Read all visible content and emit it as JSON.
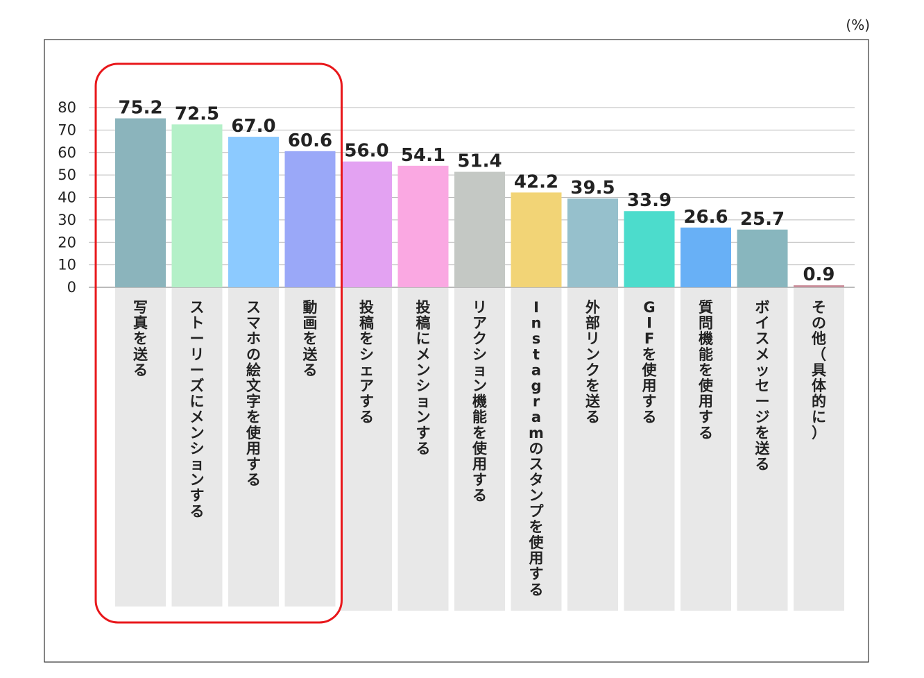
{
  "unit_label": "(%)",
  "chart_data": {
    "type": "bar",
    "title": "",
    "xlabel": "",
    "ylabel": "",
    "ylim": [
      0,
      80
    ],
    "yticks": [
      0,
      10,
      20,
      30,
      40,
      50,
      60,
      70,
      80
    ],
    "grid": true,
    "legend": "none",
    "categories": [
      "写真を送る",
      "ストーリーズにメンションする",
      "スマホの絵文字を使用する",
      "動画を送る",
      "投稿をシェアする",
      "投稿にメンションする",
      "リアクション機能を使用する",
      "Instagramのスタンプを使用する",
      "外部リンクを送る",
      "GIFを使用する",
      "質問機能を使用する",
      "ボイスメッセージを送る",
      "その他（具体的に）"
    ],
    "values": [
      75.2,
      72.5,
      67.0,
      60.6,
      56.0,
      54.1,
      51.4,
      42.2,
      39.5,
      33.9,
      26.6,
      25.7,
      0.9
    ],
    "value_labels": [
      "75.2",
      "72.5",
      "67.0",
      "60.6",
      "56.0",
      "54.1",
      "51.4",
      "42.2",
      "39.5",
      "33.9",
      "26.6",
      "25.7",
      "0.9"
    ],
    "colors": [
      "#8bb4bc",
      "#b4f0c8",
      "#8ccaff",
      "#9aa8f8",
      "#e3a2f2",
      "#faa8e2",
      "#c4c8c4",
      "#f2d476",
      "#96c0cc",
      "#4cdccc",
      "#68b0f6",
      "#88b6be",
      "#c98e9a"
    ],
    "label_bg_color": "#e8e8e8",
    "highlight": {
      "categories_index_range": [
        0,
        3
      ],
      "color": "#e8171b"
    }
  }
}
